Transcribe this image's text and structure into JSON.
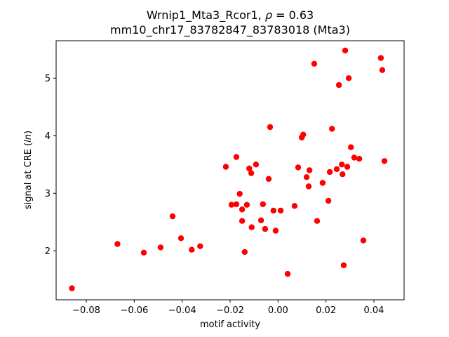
{
  "figure": {
    "background": "#ffffff"
  },
  "chart_data": {
    "type": "scatter",
    "title": {
      "prefix": "Wrnip1_Mta3_Rcor1, ",
      "rho_symbol": "ρ",
      "suffix": " = 0.63",
      "line2": "mm10_chr17_83782847_83783018 (Mta3)"
    },
    "xlabel": "motif activity",
    "ylabel": {
      "prefix": "signal at CRE (",
      "italic": "ln",
      "suffix": ")"
    },
    "marker_color": "#ff0000",
    "axis_color": "#000000",
    "grid": false,
    "legend_position": "none",
    "xlim": [
      -0.0926,
      0.0526
    ],
    "ylim": [
      1.15,
      5.65
    ],
    "xticks": [
      -0.08,
      -0.06,
      -0.04,
      -0.02,
      0,
      0.02,
      0.04
    ],
    "xtick_labels": [
      "−0.08",
      "−0.06",
      "−0.04",
      "−0.02",
      "0.00",
      "0.02",
      "0.04"
    ],
    "yticks": [
      2,
      3,
      4,
      5
    ],
    "ytick_labels": [
      "2",
      "3",
      "4",
      "5"
    ],
    "points": [
      [
        -0.086,
        1.35
      ],
      [
        -0.067,
        2.12
      ],
      [
        -0.056,
        1.97
      ],
      [
        -0.049,
        2.06
      ],
      [
        -0.044,
        2.6
      ],
      [
        -0.0405,
        2.22
      ],
      [
        -0.036,
        2.02
      ],
      [
        -0.0325,
        2.08
      ],
      [
        -0.0218,
        3.46
      ],
      [
        -0.0194,
        2.8
      ],
      [
        -0.0174,
        3.63
      ],
      [
        -0.0174,
        2.81
      ],
      [
        -0.016,
        2.99
      ],
      [
        -0.015,
        2.72
      ],
      [
        -0.015,
        2.52
      ],
      [
        -0.0139,
        1.98
      ],
      [
        -0.013,
        2.8
      ],
      [
        -0.012,
        3.43
      ],
      [
        -0.0112,
        3.35
      ],
      [
        -0.011,
        2.41
      ],
      [
        -0.0092,
        3.5
      ],
      [
        -0.0071,
        2.53
      ],
      [
        -0.0063,
        2.81
      ],
      [
        -0.0054,
        2.38
      ],
      [
        -0.0039,
        3.25
      ],
      [
        -0.0033,
        4.15
      ],
      [
        -0.0019,
        2.7
      ],
      [
        -0.001,
        2.35
      ],
      [
        0.0011,
        2.7
      ],
      [
        0.004,
        1.6
      ],
      [
        0.0069,
        2.78
      ],
      [
        0.0084,
        3.45
      ],
      [
        0.0099,
        3.97
      ],
      [
        0.0105,
        4.02
      ],
      [
        0.0119,
        3.28
      ],
      [
        0.0128,
        3.12
      ],
      [
        0.0131,
        3.4
      ],
      [
        0.0151,
        5.25
      ],
      [
        0.0163,
        2.52
      ],
      [
        0.0186,
        3.18
      ],
      [
        0.021,
        2.87
      ],
      [
        0.0216,
        3.37
      ],
      [
        0.0225,
        4.12
      ],
      [
        0.0245,
        3.42
      ],
      [
        0.0254,
        4.88
      ],
      [
        0.0266,
        3.5
      ],
      [
        0.0269,
        3.33
      ],
      [
        0.0274,
        1.75
      ],
      [
        0.028,
        5.48
      ],
      [
        0.0289,
        3.46
      ],
      [
        0.0295,
        5.0
      ],
      [
        0.0304,
        3.8
      ],
      [
        0.0318,
        3.62
      ],
      [
        0.0339,
        3.6
      ],
      [
        0.0356,
        2.18
      ],
      [
        0.0429,
        5.35
      ],
      [
        0.0435,
        5.14
      ],
      [
        0.0444,
        3.56
      ]
    ]
  }
}
